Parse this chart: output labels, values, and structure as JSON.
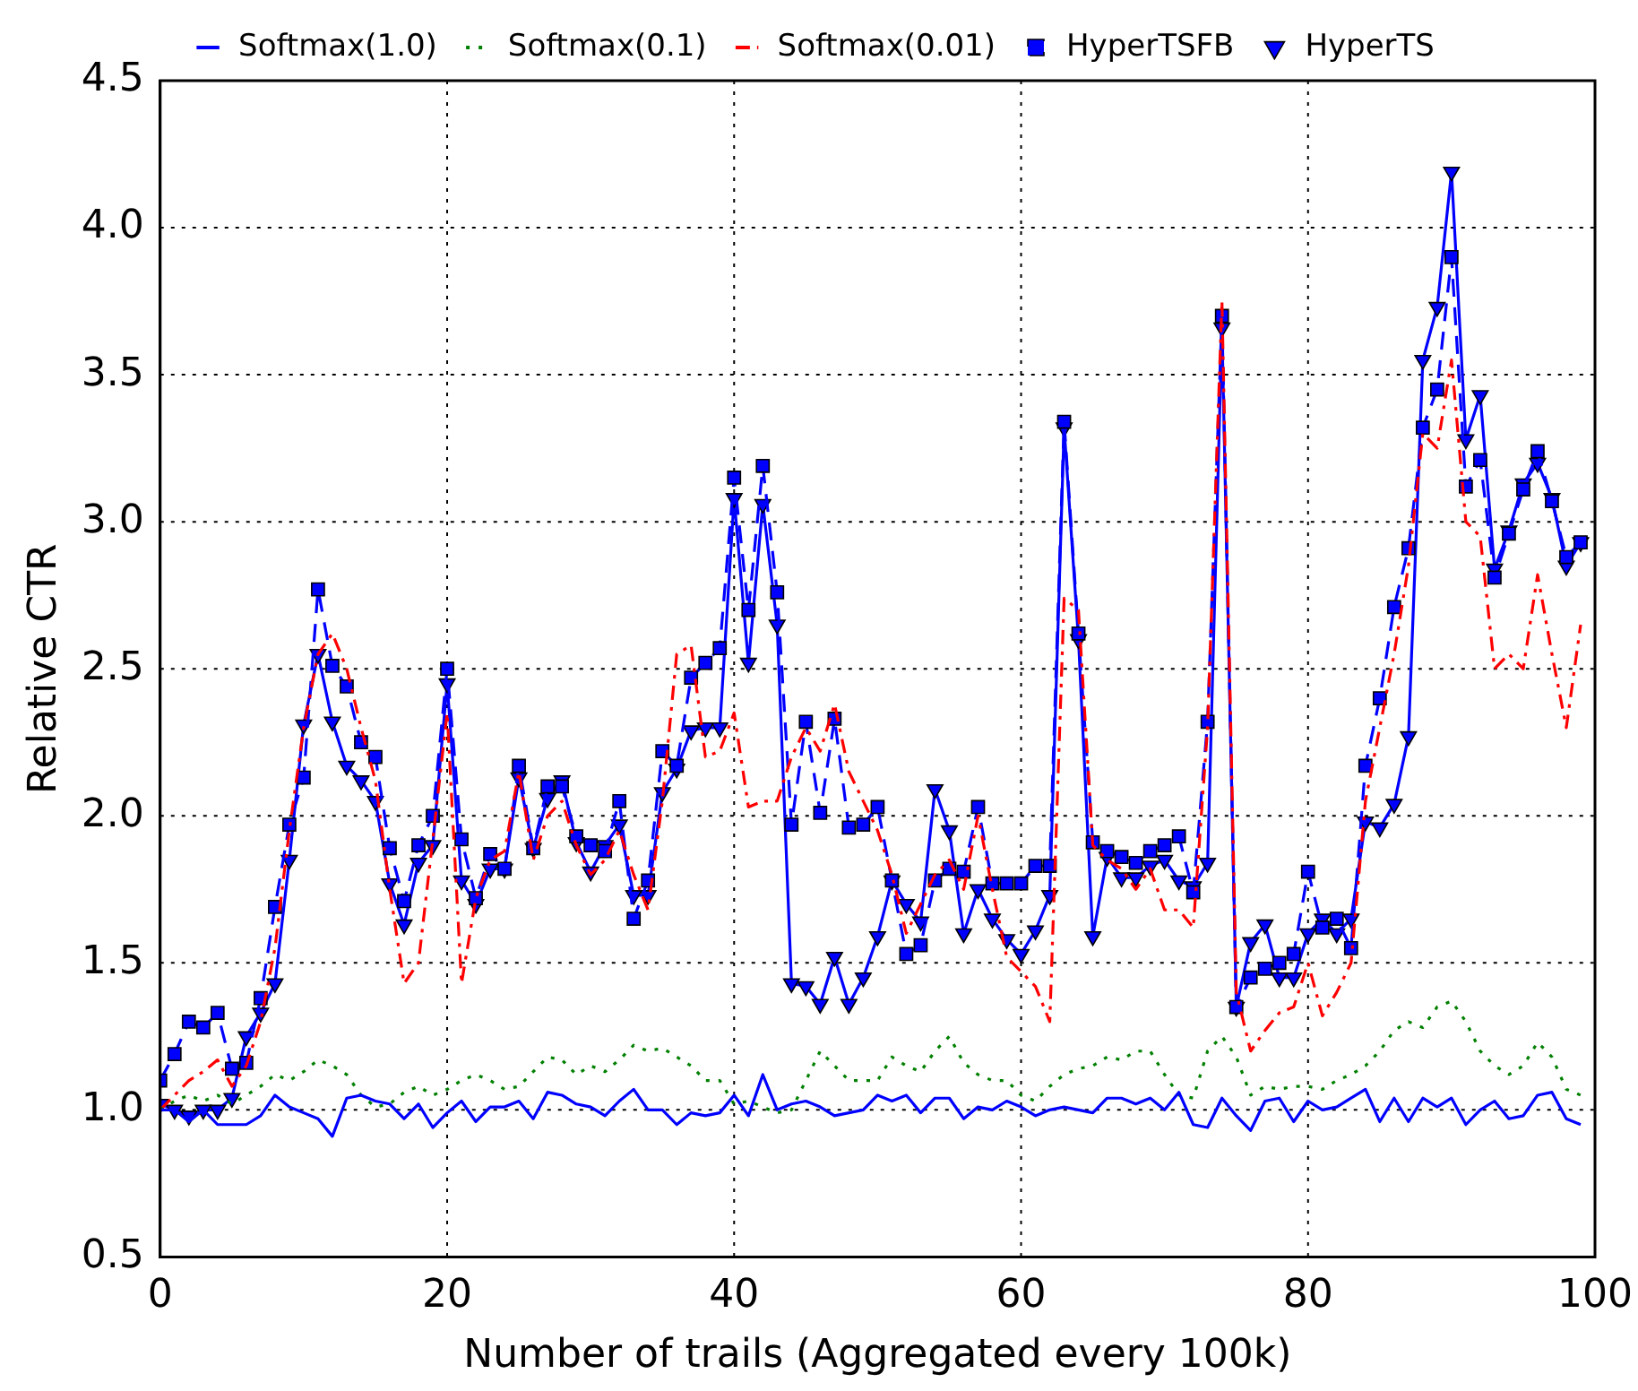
{
  "chart_data": {
    "type": "line",
    "xlabel": "Number of trails (Aggregated every 100k)",
    "ylabel": "Relative CTR",
    "x": [
      0,
      1,
      2,
      3,
      4,
      5,
      6,
      7,
      8,
      9,
      10,
      11,
      12,
      13,
      14,
      15,
      16,
      17,
      18,
      19,
      20,
      21,
      22,
      23,
      24,
      25,
      26,
      27,
      28,
      29,
      30,
      31,
      32,
      33,
      34,
      35,
      36,
      37,
      38,
      39,
      40,
      41,
      42,
      43,
      44,
      45,
      46,
      47,
      48,
      49,
      50,
      51,
      52,
      53,
      54,
      55,
      56,
      57,
      58,
      59,
      60,
      61,
      62,
      63,
      64,
      65,
      66,
      67,
      68,
      69,
      70,
      71,
      72,
      73,
      74,
      75,
      76,
      77,
      78,
      79,
      80,
      81,
      82,
      83,
      84,
      85,
      86,
      87,
      88,
      89,
      90,
      91,
      92,
      93,
      94,
      95,
      96,
      97,
      98,
      99
    ],
    "xlim": [
      0,
      100
    ],
    "xticks": [
      0,
      20,
      40,
      60,
      80,
      100
    ],
    "ylim": [
      0.5,
      4.5
    ],
    "yticks": [
      0.5,
      {
        "value": 1,
        "label": "1.0"
      },
      1.5,
      {
        "value": 2,
        "label": "2.0"
      },
      2.5,
      {
        "value": 3,
        "label": "3.0"
      },
      3.5,
      {
        "value": 4,
        "label": "4.0"
      },
      4.5
    ],
    "grid": true,
    "legend": "top",
    "series": [
      {
        "name": "Softmax(1.0)",
        "color": "#0000ff",
        "line_style": "solid",
        "marker": "none",
        "values": [
          1.0,
          1.0,
          0.96,
          1.0,
          0.95,
          0.95,
          0.95,
          0.98,
          1.05,
          1.01,
          0.99,
          0.97,
          0.91,
          1.04,
          1.05,
          1.03,
          1.02,
          0.97,
          1.02,
          0.94,
          0.99,
          1.03,
          0.96,
          1.01,
          1.01,
          1.03,
          0.97,
          1.06,
          1.05,
          1.02,
          1.01,
          0.98,
          1.03,
          1.07,
          1.0,
          1.0,
          0.95,
          0.99,
          0.98,
          0.99,
          1.05,
          0.98,
          1.12,
          1.0,
          1.02,
          1.03,
          1.01,
          0.98,
          0.99,
          1.0,
          1.05,
          1.03,
          1.05,
          0.99,
          1.04,
          1.04,
          0.97,
          1.01,
          1.0,
          1.03,
          1.01,
          0.98,
          1.0,
          1.01,
          1.0,
          0.99,
          1.04,
          1.04,
          1.02,
          1.04,
          1.0,
          1.06,
          0.95,
          0.94,
          1.04,
          0.98,
          0.93,
          1.03,
          1.04,
          0.96,
          1.03,
          1.0,
          1.01,
          1.04,
          1.07,
          0.96,
          1.04,
          0.96,
          1.04,
          1.01,
          1.04,
          0.95,
          1.0,
          1.03,
          0.97,
          0.98,
          1.05,
          1.06,
          0.97,
          0.95
        ]
      },
      {
        "name": "Softmax(0.1)",
        "color": "#008000",
        "line_style": "dotted",
        "marker": "none",
        "values": [
          1.0,
          1.03,
          1.05,
          1.03,
          1.05,
          1.02,
          1.05,
          1.08,
          1.12,
          1.1,
          1.13,
          1.17,
          1.15,
          1.12,
          1.05,
          1.01,
          1.02,
          1.06,
          1.08,
          1.05,
          1.07,
          1.1,
          1.12,
          1.1,
          1.07,
          1.08,
          1.13,
          1.18,
          1.17,
          1.12,
          1.15,
          1.13,
          1.17,
          1.22,
          1.2,
          1.21,
          1.18,
          1.15,
          1.1,
          1.1,
          1.02,
          1.03,
          1.01,
          0.99,
          1.0,
          1.1,
          1.2,
          1.15,
          1.1,
          1.1,
          1.1,
          1.18,
          1.15,
          1.13,
          1.2,
          1.25,
          1.16,
          1.12,
          1.1,
          1.1,
          1.05,
          1.03,
          1.08,
          1.12,
          1.14,
          1.15,
          1.18,
          1.17,
          1.2,
          1.2,
          1.12,
          1.05,
          1.04,
          1.2,
          1.25,
          1.18,
          1.05,
          1.08,
          1.07,
          1.08,
          1.08,
          1.07,
          1.1,
          1.12,
          1.15,
          1.2,
          1.27,
          1.3,
          1.28,
          1.35,
          1.37,
          1.3,
          1.2,
          1.15,
          1.12,
          1.15,
          1.23,
          1.18,
          1.07,
          1.05
        ]
      },
      {
        "name": "Softmax(0.01)",
        "color": "#ff0000",
        "line_style": "dashdot",
        "marker": "none",
        "values": [
          1.0,
          1.05,
          1.1,
          1.13,
          1.17,
          1.08,
          1.15,
          1.3,
          1.55,
          1.95,
          2.3,
          2.55,
          2.62,
          2.5,
          2.3,
          2.12,
          1.75,
          1.43,
          1.5,
          1.92,
          2.35,
          1.43,
          1.72,
          1.85,
          1.88,
          2.15,
          1.85,
          2.0,
          2.05,
          1.9,
          1.8,
          1.85,
          1.95,
          1.8,
          1.68,
          2.05,
          2.55,
          2.58,
          2.2,
          2.22,
          2.35,
          2.03,
          2.05,
          2.05,
          2.2,
          2.3,
          2.22,
          2.38,
          2.15,
          2.05,
          1.95,
          1.8,
          1.6,
          1.7,
          1.8,
          1.85,
          1.75,
          2.0,
          1.75,
          1.52,
          1.47,
          1.42,
          1.3,
          2.74,
          2.7,
          1.9,
          1.85,
          1.82,
          1.75,
          1.82,
          1.68,
          1.68,
          1.62,
          2.3,
          3.75,
          1.4,
          1.2,
          1.27,
          1.33,
          1.35,
          1.5,
          1.32,
          1.4,
          1.5,
          2.05,
          2.3,
          2.55,
          2.85,
          3.3,
          3.25,
          3.55,
          3.0,
          2.95,
          2.5,
          2.55,
          2.5,
          2.82,
          2.55,
          2.3,
          2.65
        ]
      },
      {
        "name": "HyperTSFB",
        "color": "#0000ff",
        "line_style": "dashed",
        "marker": "square",
        "values": [
          1.1,
          1.19,
          1.3,
          1.28,
          1.33,
          1.14,
          1.16,
          1.38,
          1.69,
          1.97,
          2.13,
          2.77,
          2.51,
          2.44,
          2.25,
          2.2,
          1.89,
          1.71,
          1.9,
          2.0,
          2.5,
          1.92,
          1.72,
          1.87,
          1.82,
          2.17,
          1.89,
          2.1,
          2.1,
          1.93,
          1.9,
          1.88,
          2.05,
          1.65,
          1.78,
          2.22,
          2.17,
          2.47,
          2.52,
          2.57,
          3.15,
          2.7,
          3.19,
          2.76,
          1.97,
          2.32,
          2.01,
          2.33,
          1.96,
          1.97,
          2.03,
          1.78,
          1.53,
          1.56,
          1.78,
          1.82,
          1.81,
          2.03,
          1.77,
          1.77,
          1.77,
          1.83,
          1.83,
          3.34,
          2.62,
          1.91,
          1.88,
          1.86,
          1.84,
          1.88,
          1.9,
          1.93,
          1.74,
          2.32,
          3.7,
          1.35,
          1.45,
          1.48,
          1.5,
          1.53,
          1.81,
          1.62,
          1.65,
          1.55,
          2.17,
          2.4,
          2.71,
          2.91,
          3.32,
          3.45,
          3.9,
          3.12,
          3.21,
          2.81,
          2.96,
          3.11,
          3.24,
          3.07,
          2.88,
          2.93
        ]
      },
      {
        "name": "HyperTS",
        "color": "#0000ff",
        "line_style": "solid",
        "marker": "triangle",
        "values": [
          1.02,
          1.0,
          0.98,
          1.0,
          1.0,
          1.04,
          1.25,
          1.33,
          1.43,
          1.85,
          2.31,
          2.55,
          2.32,
          2.17,
          2.12,
          2.05,
          1.77,
          1.63,
          1.84,
          1.9,
          2.45,
          1.78,
          1.7,
          1.82,
          1.82,
          2.13,
          1.89,
          2.06,
          2.12,
          1.91,
          1.81,
          1.9,
          1.97,
          1.73,
          1.73,
          2.08,
          2.16,
          2.29,
          2.3,
          2.3,
          3.08,
          2.52,
          3.06,
          2.65,
          1.43,
          1.42,
          1.36,
          1.52,
          1.36,
          1.45,
          1.59,
          1.78,
          1.7,
          1.64,
          2.09,
          1.95,
          1.6,
          1.75,
          1.65,
          1.58,
          1.53,
          1.61,
          1.73,
          3.32,
          2.6,
          1.59,
          1.86,
          1.79,
          1.79,
          1.83,
          1.85,
          1.78,
          1.76,
          1.84,
          3.66,
          1.35,
          1.57,
          1.63,
          1.45,
          1.45,
          1.6,
          1.65,
          1.6,
          1.65,
          1.98,
          1.96,
          2.04,
          2.27,
          3.55,
          3.73,
          4.19,
          3.28,
          3.43,
          2.84,
          2.97,
          3.13,
          3.2,
          3.08,
          2.85,
          2.93
        ]
      }
    ]
  }
}
